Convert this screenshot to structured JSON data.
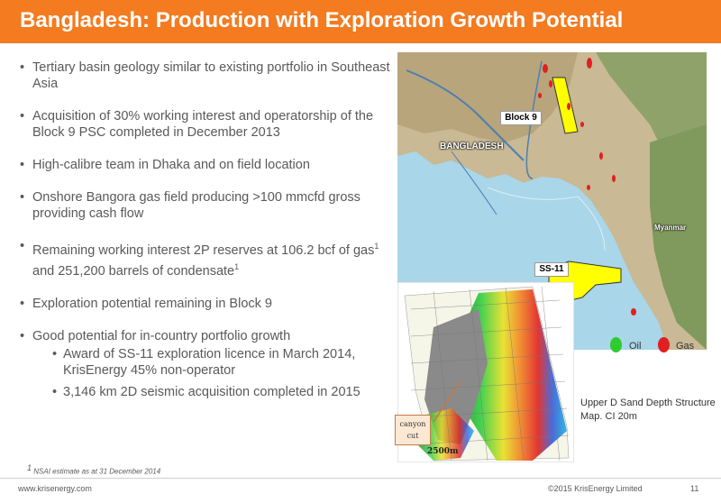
{
  "header": {
    "title": "Bangladesh: Production with Exploration Growth Potential",
    "bar_color": "#f47b20"
  },
  "bullets": [
    {
      "text": "Tertiary basin geology similar to existing portfolio in Southeast Asia"
    },
    {
      "text": "Acquisition of 30% working interest and operatorship of the Block 9 PSC completed in December 2013"
    },
    {
      "text": "High-calibre team in Dhaka and on field location"
    },
    {
      "text": "Onshore Bangora gas field producing >100 mmcfd gross providing cash flow"
    },
    {
      "text_part1": "Remaining working interest 2P reserves at 106.2 bcf of gas",
      "sup1": "1",
      "text_part2": " and 251,200 barrels of condensate",
      "sup2": "1"
    },
    {
      "text": "Exploration potential remaining in Block 9"
    },
    {
      "text": "Good potential for in-country portfolio growth",
      "sub": [
        {
          "text": "Award of SS-11 exploration licence in March 2014, KrisEnergy 45% non-operator"
        },
        {
          "text": "3,146 km 2D seismic acquisition completed in 2015"
        }
      ]
    }
  ],
  "footnote": {
    "sup": "1",
    "text": " NSAI estimate as at 31 December 2014"
  },
  "footer": {
    "url": "www.krisenergy.com",
    "copyright": "©2015 KrisEnergy Limited",
    "page_number": "11"
  },
  "map": {
    "block9_label": "Block 9",
    "ss11_label": "SS-11",
    "country_label": "BANGLADESH",
    "neighbor_label": "Myanmar",
    "icons": [
      "oil-drop-icon",
      "gas-drop-icon"
    ]
  },
  "legend": {
    "oil_label": "Oil",
    "oil_color": "#2ecc2e",
    "gas_label": "Gas",
    "gas_color": "#e02020"
  },
  "caption": "Upper D Sand Depth Structure Map. CI 20m",
  "seismic": {
    "canyon_label_line1": "canyon",
    "canyon_label_line2": "cut",
    "scale_label": "2500m"
  }
}
